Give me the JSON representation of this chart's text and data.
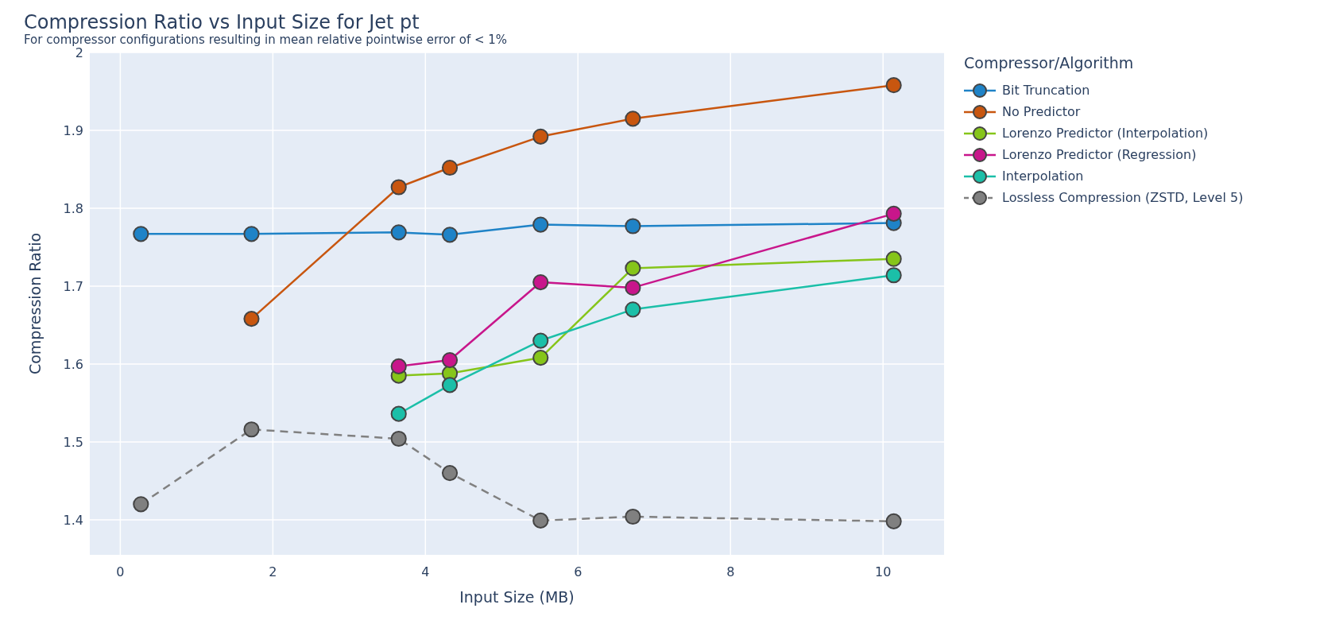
{
  "chart_data": {
    "type": "line",
    "title": "Compression Ratio vs Input Size for Jet pt",
    "subtitle": "For compressor configurations resulting in mean relative pointwise error of < 1%",
    "xlabel": "Input Size (MB)",
    "ylabel": "Compression Ratio",
    "legend_title": "Compressor/Algorithm",
    "legend": "top right",
    "grid": true,
    "marker": "circle",
    "xlim": [
      -0.4,
      10.8
    ],
    "xticks": [
      0,
      2,
      4,
      6,
      8,
      10
    ],
    "ylim": [
      1.355,
      2.0
    ],
    "yticks": [
      1.4,
      1.5,
      1.6,
      1.7,
      1.8,
      1.9,
      2
    ],
    "series": [
      {
        "name": "Bit Truncation",
        "color": "#1f83c7",
        "line_style": "solid",
        "x": [
          0.27,
          1.72,
          3.65,
          4.32,
          5.51,
          6.72,
          10.14
        ],
        "values": [
          1.767,
          1.767,
          1.769,
          1.766,
          1.779,
          1.777,
          1.781
        ]
      },
      {
        "name": "No Predictor",
        "color": "#c8560f",
        "line_style": "solid",
        "x": [
          1.72,
          3.65,
          4.32,
          5.51,
          6.72,
          10.14
        ],
        "values": [
          1.658,
          1.827,
          1.852,
          1.892,
          1.915,
          1.958
        ]
      },
      {
        "name": "Lorenzo Predictor (Interpolation)",
        "color": "#86c51a",
        "line_style": "solid",
        "x": [
          3.65,
          4.32,
          5.51,
          6.72,
          10.14
        ],
        "values": [
          1.585,
          1.588,
          1.608,
          1.723,
          1.735
        ]
      },
      {
        "name": "Lorenzo Predictor (Regression)",
        "color": "#c8168b",
        "line_style": "solid",
        "x": [
          3.65,
          4.32,
          5.51,
          6.72,
          10.14
        ],
        "values": [
          1.597,
          1.605,
          1.705,
          1.698,
          1.793
        ]
      },
      {
        "name": "Interpolation",
        "color": "#1bbfa8",
        "line_style": "solid",
        "x": [
          3.65,
          4.32,
          5.51,
          6.72,
          10.14
        ],
        "values": [
          1.536,
          1.573,
          1.63,
          1.67,
          1.714
        ]
      },
      {
        "name": "Lossless Compression (ZSTD, Level 5)",
        "color": "#808080",
        "line_style": "dashed",
        "x": [
          0.27,
          1.72,
          3.65,
          4.32,
          5.51,
          6.72,
          10.14
        ],
        "values": [
          1.42,
          1.516,
          1.504,
          1.46,
          1.399,
          1.404,
          1.398
        ]
      }
    ]
  }
}
